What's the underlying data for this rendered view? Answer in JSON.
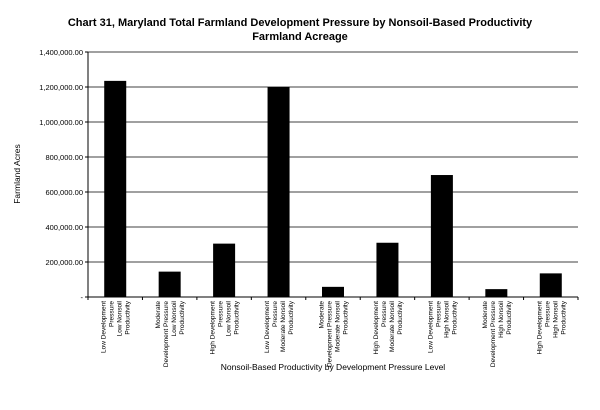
{
  "chart_data": {
    "type": "bar",
    "title": "Chart 31, Maryland Total Farmland Development Pressure by Nonsoil-Based Productivity",
    "subtitle": "Farmland Acreage",
    "xlabel": "Nonsoil-Based Productivity by Development Pressure Level",
    "ylabel": "Farmland Acres",
    "ylim": [
      0,
      1400000
    ],
    "yticks": [
      0,
      200000,
      400000,
      600000,
      800000,
      1000000,
      1200000,
      1400000
    ],
    "ytick_labels": [
      "-",
      "200,000.00",
      "400,000.00",
      "600,000.00",
      "800,000.00",
      "1,000,000.00",
      "1,200,000.00",
      "1,400,000.00"
    ],
    "grid": true,
    "bar_color": "#000000",
    "categories": [
      [
        "Low Development",
        "Pressure",
        "Low Nonsoil",
        "Productivity"
      ],
      [
        "Moderate",
        "Development Pressure",
        "Low Nonsoil",
        "Productivity"
      ],
      [
        "High Development",
        "Pressure",
        "Low Nonsoil",
        "Productivity"
      ],
      [
        "Low Development",
        "Pressure",
        "Moderate Nonsoil",
        "Productivity"
      ],
      [
        "Moderate",
        "Development Pressure",
        "Moderate Nonsoil",
        "Productivity"
      ],
      [
        "High Development",
        "Pressure",
        "Moderate Nonsoil",
        "Productivity"
      ],
      [
        "Low Development",
        "Pressure",
        "High Nonsoil",
        "Productivity"
      ],
      [
        "Moderate",
        "Development Pressure",
        "High Nonsoil",
        "Productivity"
      ],
      [
        "High Development",
        "Pressure",
        "High Nonsoil",
        "Productivity"
      ]
    ],
    "values": [
      1235000,
      145000,
      305000,
      1200000,
      58000,
      310000,
      697000,
      45000,
      135000
    ]
  }
}
